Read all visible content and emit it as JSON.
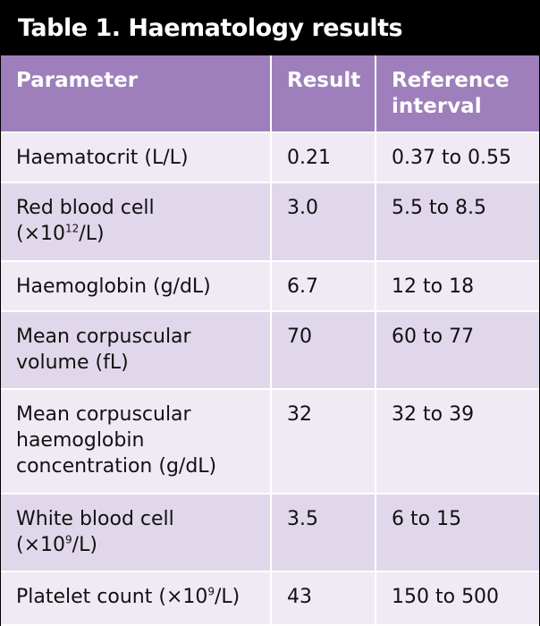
{
  "title": "Table 1. Haematology results",
  "columns": [
    "Parameter",
    "Result",
    "Reference interval"
  ],
  "rows": [
    {
      "parameter": "Haematocrit (L/L)",
      "result": "0.21",
      "reference": "0.37 to 0.55"
    },
    {
      "parameter": "Red blood cell",
      "parameter_unit_prefix": "(×10",
      "parameter_unit_exp": "12",
      "parameter_unit_suffix": "/L)",
      "result": "3.0",
      "reference": "5.5 to 8.5"
    },
    {
      "parameter": "Haemoglobin (g/dL)",
      "result": "6.7",
      "reference": "12 to 18"
    },
    {
      "parameter": "Mean corpuscular volume (fL)",
      "result": "70",
      "reference": "60 to 77"
    },
    {
      "parameter": "Mean corpuscular haemoglobin concentration (g/dL)",
      "result": "32",
      "reference": "32 to 39"
    },
    {
      "parameter": "White blood cell",
      "parameter_unit_prefix": "(×10",
      "parameter_unit_exp": "9",
      "parameter_unit_suffix": "/L)",
      "result": "3.5",
      "reference": "6 to 15"
    },
    {
      "parameter": "Platelet count",
      "parameter_unit_prefix": "(×10",
      "parameter_unit_exp": "9",
      "parameter_unit_suffix": "/L)",
      "result": "43",
      "reference": "150 to 500"
    }
  ],
  "colors": {
    "header_bg": "#9e7fbb",
    "row_light": "#efeaf4",
    "row_dark": "#e1d7ea",
    "title_bg": "#000000"
  }
}
